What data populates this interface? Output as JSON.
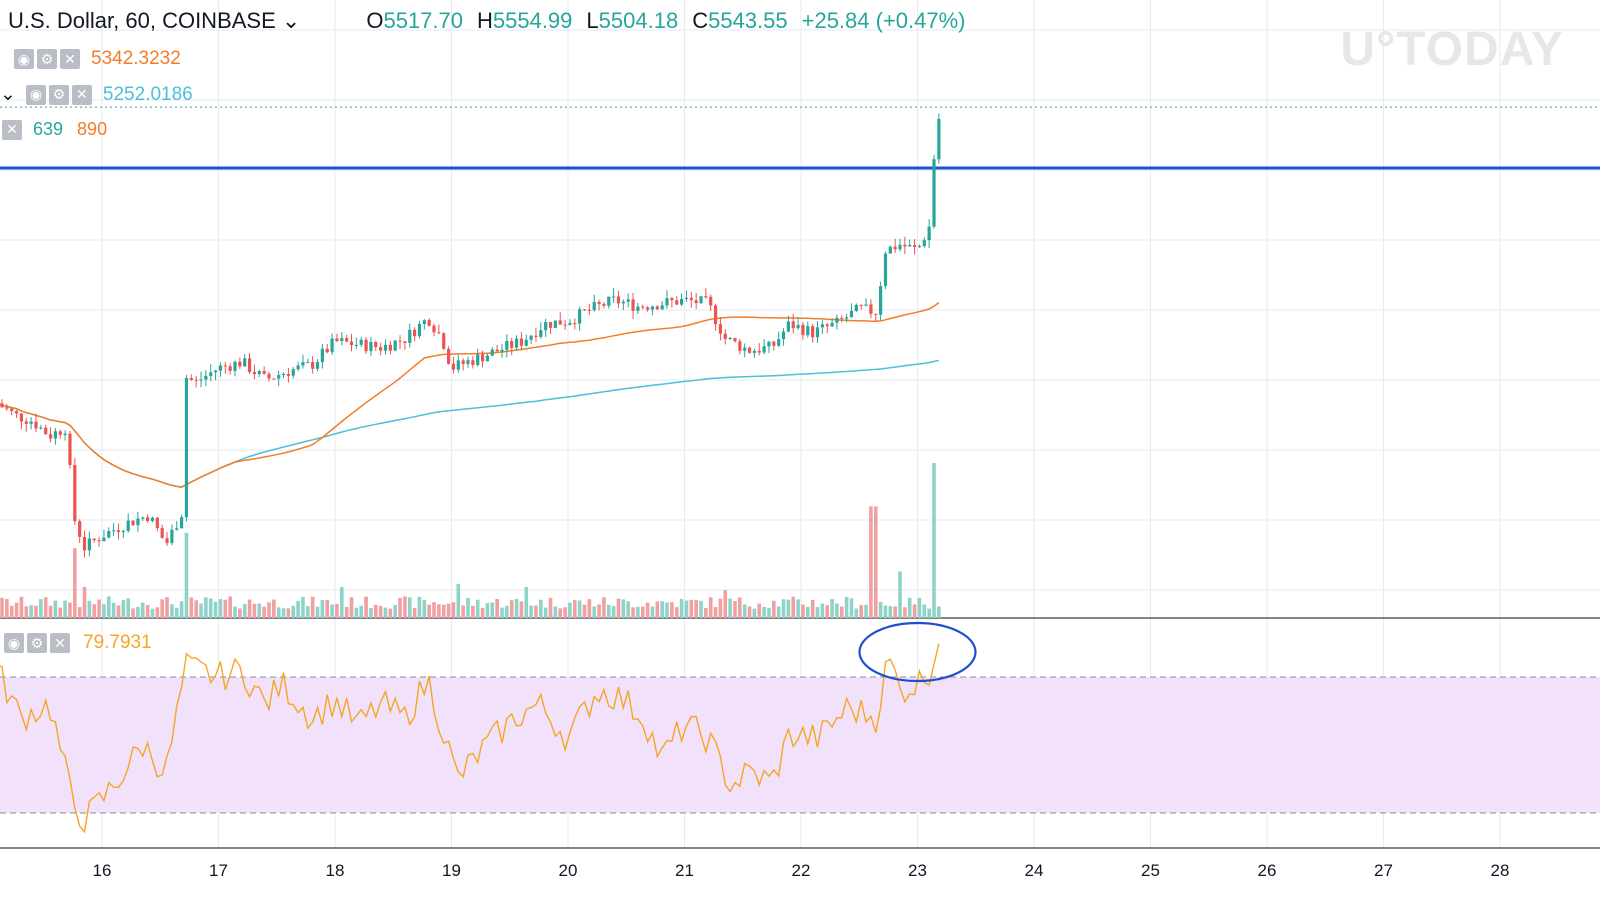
{
  "header": {
    "symbol": "U.S. Dollar, 60, COINBASE",
    "open_label": "O",
    "open": "5517.70",
    "high_label": "H",
    "high": "5554.99",
    "low_label": "L",
    "low": "5504.18",
    "close_label": "C",
    "close": "5543.55",
    "change": "+25.84 (+0.47%)"
  },
  "watermark": "U°TODAY",
  "indicators": {
    "ma_fast": {
      "value": "5342.3232",
      "color": "#f57c27"
    },
    "ma_slow": {
      "value": "5252.0186",
      "color": "#4bc0d8"
    },
    "volume": {
      "value1": "639",
      "value2": "890",
      "color1": "#26a69a",
      "color2": "#f57c27"
    },
    "rsi": {
      "value": "79.7931",
      "color": "#f5a623"
    }
  },
  "chart_data": {
    "type": "candlestick",
    "x_axis": {
      "tick_labels": [
        "16",
        "17",
        "18",
        "19",
        "20",
        "21",
        "22",
        "23",
        "24",
        "25",
        "26",
        "27",
        "28"
      ],
      "range_days": [
        15.1,
        28.6
      ]
    },
    "price_axis": {
      "visible": false,
      "approx_range": [
        4720,
        5750
      ]
    },
    "horizontal_line": {
      "price": 5440,
      "color": "#1f4fd1"
    },
    "last_price_line": {
      "price": 5543.55,
      "style": "dotted",
      "color": "#26a69a"
    },
    "price_series": [
      {
        "t": 15.1,
        "c": 5040
      },
      {
        "t": 15.25,
        "c": 5020
      },
      {
        "t": 15.4,
        "c": 5010
      },
      {
        "t": 15.55,
        "c": 4985
      },
      {
        "t": 15.7,
        "c": 5000
      },
      {
        "t": 15.75,
        "c": 4850
      },
      {
        "t": 15.85,
        "c": 4795
      },
      {
        "t": 16.0,
        "c": 4815
      },
      {
        "t": 16.2,
        "c": 4835
      },
      {
        "t": 16.4,
        "c": 4850
      },
      {
        "t": 16.55,
        "c": 4800
      },
      {
        "t": 16.7,
        "c": 4860
      },
      {
        "t": 16.72,
        "c": 5085
      },
      {
        "t": 16.8,
        "c": 5075
      },
      {
        "t": 17.0,
        "c": 5100
      },
      {
        "t": 17.2,
        "c": 5110
      },
      {
        "t": 17.4,
        "c": 5080
      },
      {
        "t": 17.6,
        "c": 5095
      },
      {
        "t": 17.8,
        "c": 5105
      },
      {
        "t": 18.0,
        "c": 5145
      },
      {
        "t": 18.2,
        "c": 5140
      },
      {
        "t": 18.4,
        "c": 5135
      },
      {
        "t": 18.6,
        "c": 5150
      },
      {
        "t": 18.8,
        "c": 5185
      },
      {
        "t": 18.92,
        "c": 5150
      },
      {
        "t": 19.0,
        "c": 5100
      },
      {
        "t": 19.2,
        "c": 5115
      },
      {
        "t": 19.4,
        "c": 5130
      },
      {
        "t": 19.6,
        "c": 5145
      },
      {
        "t": 19.8,
        "c": 5175
      },
      {
        "t": 20.0,
        "c": 5180
      },
      {
        "t": 20.2,
        "c": 5200
      },
      {
        "t": 20.4,
        "c": 5215
      },
      {
        "t": 20.6,
        "c": 5205
      },
      {
        "t": 20.8,
        "c": 5210
      },
      {
        "t": 21.0,
        "c": 5215
      },
      {
        "t": 21.2,
        "c": 5210
      },
      {
        "t": 21.35,
        "c": 5150
      },
      {
        "t": 21.55,
        "c": 5130
      },
      {
        "t": 21.75,
        "c": 5135
      },
      {
        "t": 21.9,
        "c": 5175
      },
      {
        "t": 22.1,
        "c": 5160
      },
      {
        "t": 22.3,
        "c": 5175
      },
      {
        "t": 22.5,
        "c": 5200
      },
      {
        "t": 22.65,
        "c": 5195
      },
      {
        "t": 22.72,
        "c": 5300
      },
      {
        "t": 22.85,
        "c": 5310
      },
      {
        "t": 23.0,
        "c": 5300
      },
      {
        "t": 23.1,
        "c": 5340
      },
      {
        "t": 23.15,
        "c": 5480
      },
      {
        "t": 23.18,
        "c": 5520
      },
      {
        "t": 23.2,
        "c": 5543.55
      }
    ],
    "volume_relative": [
      {
        "t": 15.75,
        "v": 0.45
      },
      {
        "t": 15.85,
        "v": 0.2
      },
      {
        "t": 16.72,
        "v": 0.55
      },
      {
        "t": 18.05,
        "v": 0.2
      },
      {
        "t": 19.05,
        "v": 0.22
      },
      {
        "t": 19.65,
        "v": 0.2
      },
      {
        "t": 21.35,
        "v": 0.18
      },
      {
        "t": 22.62,
        "v": 0.72
      },
      {
        "t": 22.85,
        "v": 0.3
      },
      {
        "t": 23.15,
        "v": 1.0
      }
    ],
    "rsi": {
      "upper_level": 70,
      "lower_level": 30,
      "current": 79.7931,
      "series": [
        {
          "t": 15.1,
          "v": 72
        },
        {
          "t": 15.3,
          "v": 58
        },
        {
          "t": 15.55,
          "v": 62
        },
        {
          "t": 15.75,
          "v": 33
        },
        {
          "t": 15.85,
          "v": 28
        },
        {
          "t": 16.1,
          "v": 38
        },
        {
          "t": 16.35,
          "v": 50
        },
        {
          "t": 16.55,
          "v": 42
        },
        {
          "t": 16.72,
          "v": 73
        },
        {
          "t": 17.0,
          "v": 70
        },
        {
          "t": 17.2,
          "v": 72
        },
        {
          "t": 17.4,
          "v": 62
        },
        {
          "t": 17.55,
          "v": 68
        },
        {
          "t": 17.8,
          "v": 58
        },
        {
          "t": 18.0,
          "v": 63
        },
        {
          "t": 18.2,
          "v": 56
        },
        {
          "t": 18.4,
          "v": 62
        },
        {
          "t": 18.6,
          "v": 58
        },
        {
          "t": 18.8,
          "v": 69
        },
        {
          "t": 19.05,
          "v": 40
        },
        {
          "t": 19.3,
          "v": 50
        },
        {
          "t": 19.55,
          "v": 58
        },
        {
          "t": 19.75,
          "v": 62
        },
        {
          "t": 20.0,
          "v": 52
        },
        {
          "t": 20.25,
          "v": 66
        },
        {
          "t": 20.45,
          "v": 64
        },
        {
          "t": 20.65,
          "v": 58
        },
        {
          "t": 20.8,
          "v": 46
        },
        {
          "t": 21.0,
          "v": 56
        },
        {
          "t": 21.2,
          "v": 52
        },
        {
          "t": 21.4,
          "v": 38
        },
        {
          "t": 21.55,
          "v": 42
        },
        {
          "t": 21.75,
          "v": 39
        },
        {
          "t": 21.9,
          "v": 53
        },
        {
          "t": 22.15,
          "v": 52
        },
        {
          "t": 22.4,
          "v": 61
        },
        {
          "t": 22.65,
          "v": 58
        },
        {
          "t": 22.75,
          "v": 76
        },
        {
          "t": 22.85,
          "v": 66
        },
        {
          "t": 23.0,
          "v": 68
        },
        {
          "t": 23.1,
          "v": 72
        },
        {
          "t": 23.2,
          "v": 79.79
        }
      ]
    },
    "annotation": {
      "shape": "ellipse",
      "color": "#1f4fd1",
      "target": "rsi-overbought-spike",
      "t_center": 23.0
    }
  }
}
